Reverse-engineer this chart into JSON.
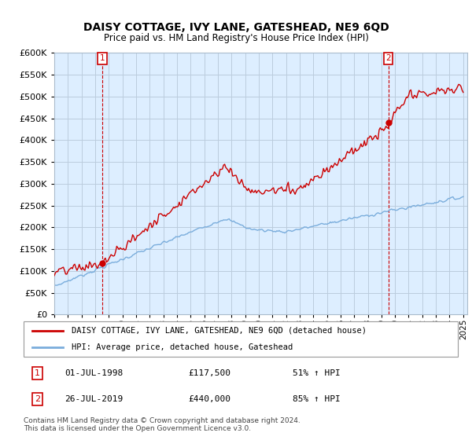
{
  "title": "DAISY COTTAGE, IVY LANE, GATESHEAD, NE9 6QD",
  "subtitle": "Price paid vs. HM Land Registry's House Price Index (HPI)",
  "hpi_label": "HPI: Average price, detached house, Gateshead",
  "property_label": "DAISY COTTAGE, IVY LANE, GATESHEAD, NE9 6QD (detached house)",
  "sale1_date": "01-JUL-1998",
  "sale1_price": 117500,
  "sale1_hpi": "51% ↑ HPI",
  "sale2_date": "26-JUL-2019",
  "sale2_price": 440000,
  "sale2_hpi": "85% ↑ HPI",
  "footnote": "Contains HM Land Registry data © Crown copyright and database right 2024.\nThis data is licensed under the Open Government Licence v3.0.",
  "line_color_property": "#cc0000",
  "line_color_hpi": "#7aaddc",
  "chart_bg": "#ddeeff",
  "ylim": [
    0,
    600000
  ],
  "yticks": [
    0,
    50000,
    100000,
    150000,
    200000,
    250000,
    300000,
    350000,
    400000,
    450000,
    500000,
    550000,
    600000
  ],
  "background_color": "#ffffff",
  "grid_color": "#bbccdd"
}
